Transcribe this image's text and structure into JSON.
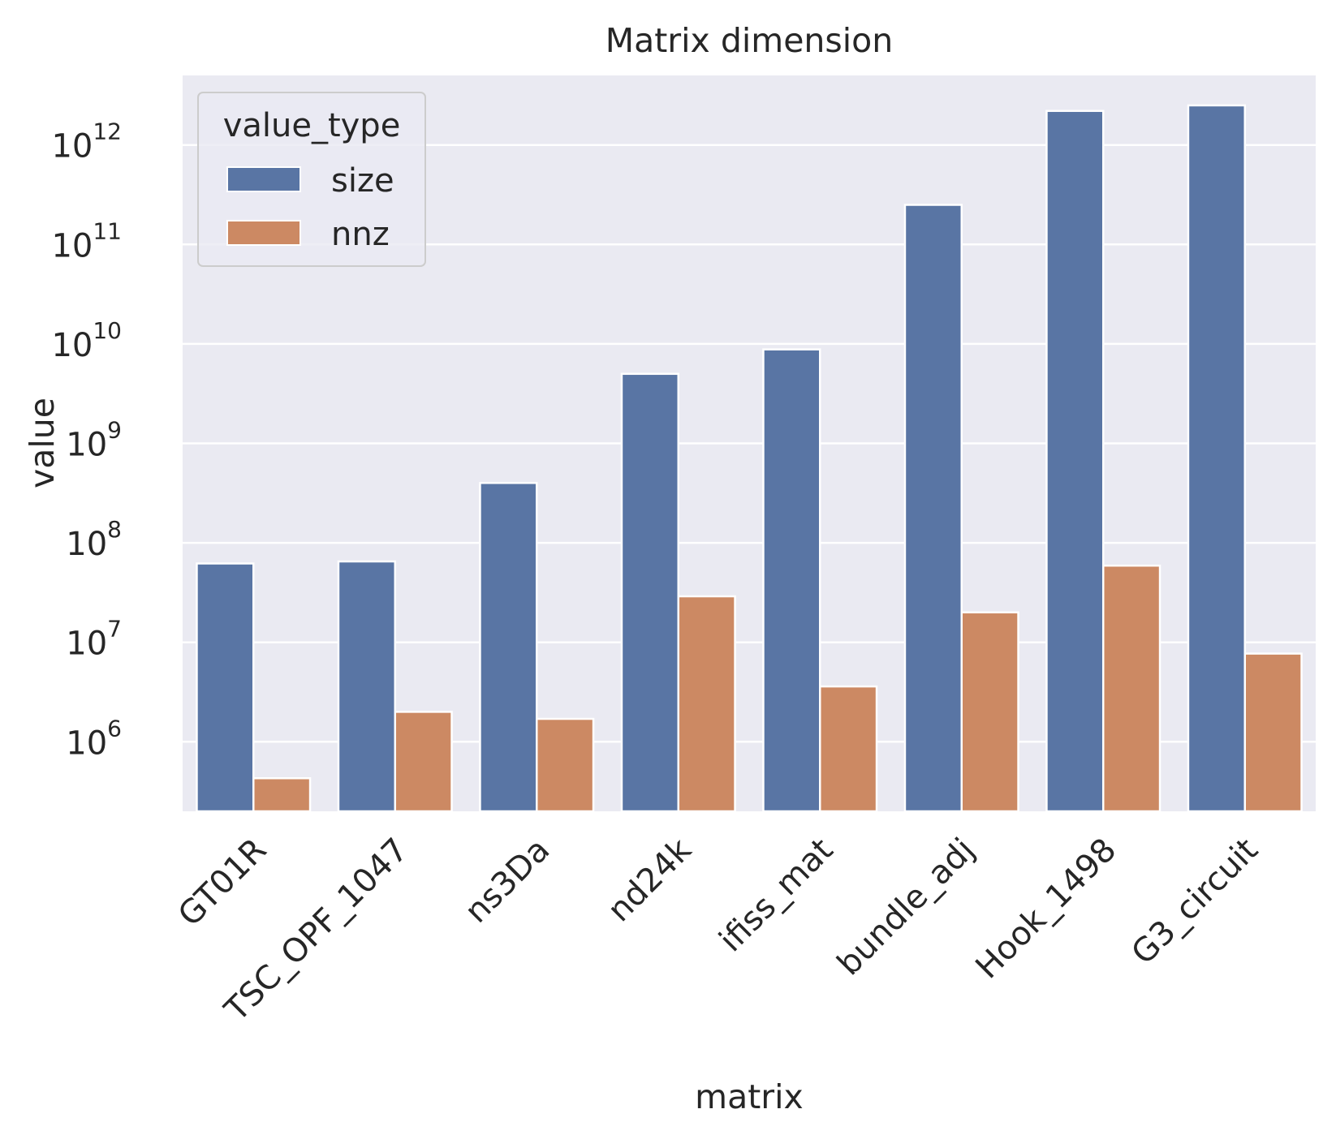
{
  "chart_data": {
    "type": "bar",
    "title": "Matrix dimension",
    "xlabel": "matrix",
    "ylabel": "value",
    "yscale": "log",
    "ylim": [
      200000,
      5000000000000
    ],
    "grid": true,
    "legend": {
      "title": "value_type",
      "position": "top-left"
    },
    "categories": [
      "GT01R",
      "TSC_OPF_1047",
      "ns3Da",
      "nd24k",
      "ifiss_mat",
      "bundle_adj",
      "Hook_1498",
      "G3_circuit"
    ],
    "series": [
      {
        "name": "size",
        "color": "#5975a4",
        "values": [
          62000000,
          65000000,
          400000000,
          5000000000,
          8800000000,
          250000000000,
          2200000000000,
          2500000000000
        ]
      },
      {
        "name": "nnz",
        "color": "#cc8963",
        "values": [
          430000,
          2000000,
          1700000,
          29000000,
          3600000,
          20000000,
          59000000,
          7700000
        ]
      }
    ],
    "yticks": [
      {
        "value": 1000000,
        "base": "10",
        "exp": "6"
      },
      {
        "value": 10000000,
        "base": "10",
        "exp": "7"
      },
      {
        "value": 100000000,
        "base": "10",
        "exp": "8"
      },
      {
        "value": 1000000000,
        "base": "10",
        "exp": "9"
      },
      {
        "value": 10000000000,
        "base": "10",
        "exp": "10"
      },
      {
        "value": 100000000000,
        "base": "10",
        "exp": "11"
      },
      {
        "value": 1000000000000,
        "base": "10",
        "exp": "12"
      }
    ]
  }
}
